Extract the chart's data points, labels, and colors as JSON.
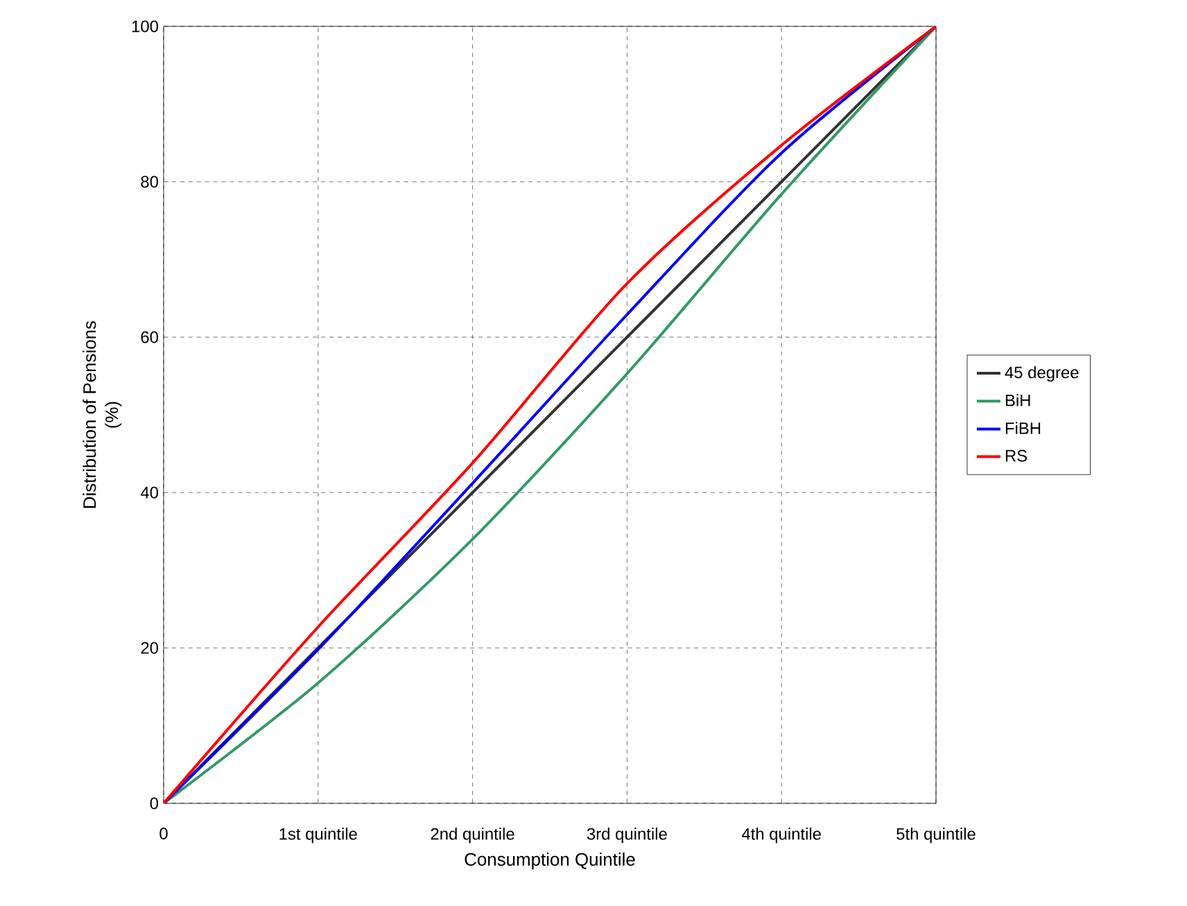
{
  "chart_data": {
    "type": "line",
    "xlabel": "Consumption Quintile",
    "ylabel": "Distribution of Pensions\n(%)",
    "categories": [
      "0",
      "1st quintile",
      "2nd quintile",
      "3rd quintile",
      "4th quintile",
      "5th quintile"
    ],
    "series": [
      {
        "name": "45 degree",
        "color": "#333333",
        "values": [
          0,
          20,
          40,
          60,
          80,
          100
        ]
      },
      {
        "name": "BiH",
        "color": "#339966",
        "values": [
          0,
          15.5,
          34,
          55.3,
          78.4,
          100
        ]
      },
      {
        "name": "FiBH",
        "color": "#0000ff",
        "values": [
          0,
          19.8,
          41.2,
          62.9,
          83.7,
          100
        ]
      },
      {
        "name": "RS",
        "color": "#ff0000",
        "values": [
          0,
          22.7,
          43.8,
          66.9,
          84.7,
          100
        ]
      }
    ],
    "ylim": [
      0,
      100
    ],
    "yticks": [
      0,
      20,
      40,
      60,
      80,
      100
    ],
    "grid": true,
    "legend": "right",
    "line_style": "solid",
    "marker": "none"
  }
}
